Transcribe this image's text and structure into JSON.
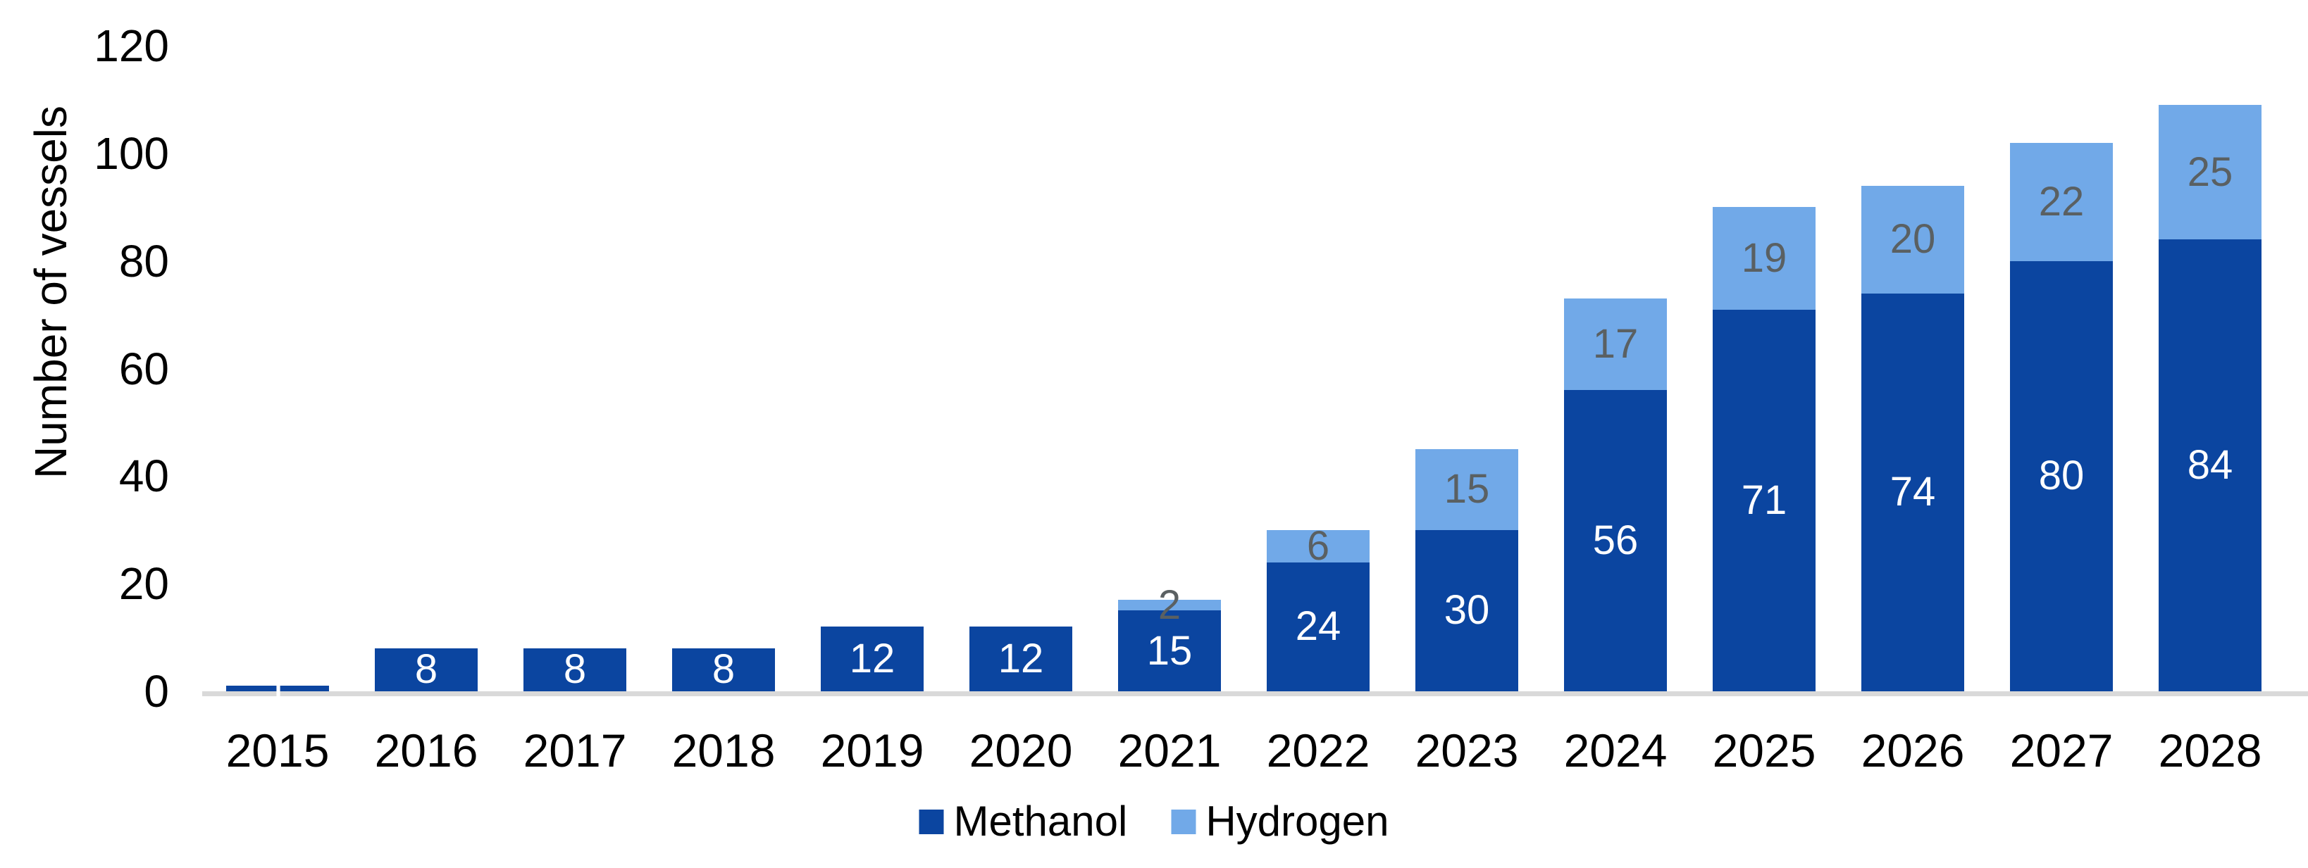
{
  "chart_data": {
    "type": "bar",
    "stacked": true,
    "title": "",
    "xlabel": "",
    "ylabel": "Number of vessels",
    "ylim": [
      0,
      120
    ],
    "yticks": [
      0,
      20,
      40,
      60,
      80,
      100,
      120
    ],
    "grid": false,
    "legend_position": "bottom-center",
    "categories": [
      "2015",
      "2016",
      "2017",
      "2018",
      "2019",
      "2020",
      "2021",
      "2022",
      "2023",
      "2024",
      "2025",
      "2026",
      "2027",
      "2028"
    ],
    "series": [
      {
        "name": "Methanol",
        "color": "#0B45A0",
        "label_color": "#FFFFFF",
        "values": [
          1,
          8,
          8,
          8,
          12,
          12,
          15,
          24,
          30,
          56,
          71,
          74,
          80,
          84
        ]
      },
      {
        "name": "Hydrogen",
        "color": "#71A9E8",
        "label_color": "#5A6062",
        "values": [
          0,
          0,
          0,
          0,
          0,
          0,
          2,
          6,
          15,
          17,
          19,
          20,
          22,
          25
        ]
      }
    ],
    "axis_line_color": "#D9D9D9",
    "tick_label_color": "#000000"
  }
}
